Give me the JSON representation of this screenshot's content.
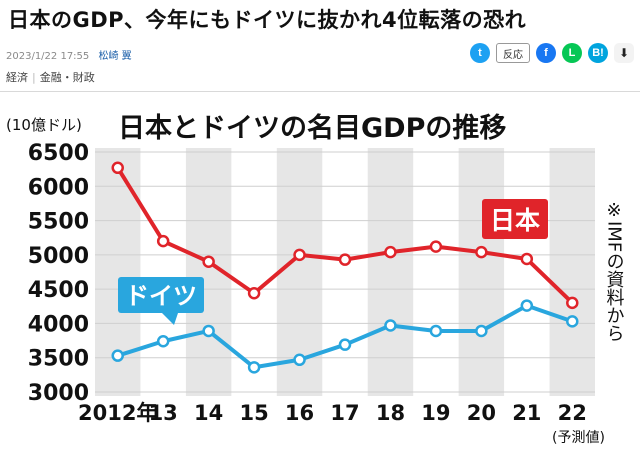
{
  "article": {
    "headline": "日本のGDP、今年にもドイツに抜かれ4位転落の恐れ",
    "timestamp": "2023/1/22 17:55",
    "author": "松崎 翼",
    "categories": [
      "経済",
      "金融・財政"
    ]
  },
  "share_bar": {
    "reaction_label": "反応",
    "buttons": [
      {
        "name": "twitter",
        "glyph": "t",
        "color": "#1da1f2"
      },
      {
        "name": "facebook",
        "glyph": "f",
        "color": "#1877f2"
      },
      {
        "name": "line",
        "glyph": "L",
        "color": "#06c755"
      },
      {
        "name": "hatena",
        "glyph": "B!",
        "color": "#00a4de"
      }
    ],
    "pocket_glyph": "⬇"
  },
  "chart_data": {
    "type": "line",
    "title": "日本とドイツの名目GDPの推移",
    "unit_label": "(10億ドル)",
    "side_note": "※IMFの資料から",
    "forecast_label": "(予測値)",
    "categories": [
      "2012年",
      "13",
      "14",
      "15",
      "16",
      "17",
      "18",
      "19",
      "20",
      "21",
      "22"
    ],
    "ylim": [
      3000,
      6500
    ],
    "yticks": [
      3000,
      3500,
      4000,
      4500,
      5000,
      5500,
      6000,
      6500
    ],
    "series": [
      {
        "name": "日本",
        "color": "#e0242a",
        "values": [
          6270,
          5200,
          4900,
          4440,
          5000,
          4930,
          5040,
          5120,
          5040,
          4940,
          4300
        ]
      },
      {
        "name": "ドイツ",
        "color": "#29a6de",
        "values": [
          3530,
          3740,
          3890,
          3360,
          3470,
          3690,
          3970,
          3890,
          3890,
          4260,
          4030
        ]
      }
    ],
    "grid": "alternating vertical stripes",
    "legend": "inline labels next to lines"
  }
}
